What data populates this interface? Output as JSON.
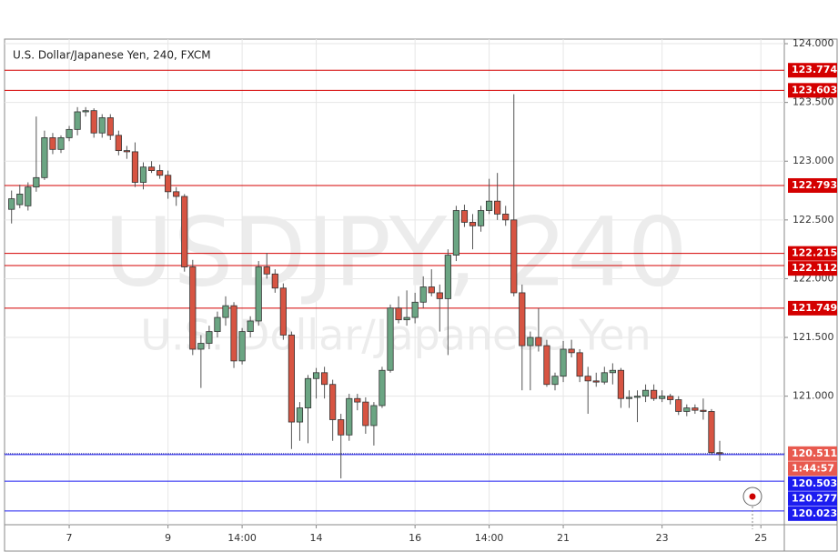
{
  "chart_data": {
    "type": "candlestick",
    "title": "U.S. Dollar/Japanese Yen, 240, FXCM",
    "watermark": [
      "USDJPY, 240",
      "U.S. Dollar/Japanese Yen"
    ],
    "categories": [
      null,
      null,
      null,
      null,
      null,
      null,
      null,
      "7",
      null,
      null,
      null,
      null,
      null,
      null,
      null,
      null,
      null,
      null,
      null,
      "9",
      null,
      null,
      null,
      null,
      null,
      null,
      null,
      null,
      "14:00",
      null,
      null,
      null,
      null,
      null,
      null,
      null,
      null,
      "14",
      null,
      null,
      null,
      null,
      null,
      null,
      null,
      null,
      null,
      null,
      null,
      "16",
      null,
      null,
      null,
      null,
      null,
      null,
      null,
      null,
      "14:00",
      null,
      null,
      null,
      null,
      null,
      null,
      null,
      null,
      "21",
      null,
      null,
      null,
      null,
      null,
      null,
      null,
      null,
      null,
      null,
      null,
      "23",
      null,
      null,
      null,
      null,
      null,
      null,
      null,
      null,
      null,
      null,
      null,
      "25"
    ],
    "open": [
      122.59,
      122.63,
      122.62,
      122.78,
      122.86,
      123.2,
      123.1,
      123.2,
      123.27,
      123.42,
      123.43,
      123.24,
      123.37,
      123.22,
      123.09,
      123.08,
      122.82,
      122.95,
      122.92,
      122.88,
      122.74,
      122.7,
      122.1,
      121.4,
      121.45,
      121.55,
      121.67,
      121.77,
      121.3,
      121.55,
      121.64,
      122.1,
      122.04,
      121.92,
      121.52,
      120.78,
      120.9,
      121.15,
      121.2,
      121.1,
      120.8,
      120.67,
      120.98,
      120.95,
      120.75,
      120.92,
      121.22,
      121.75,
      121.65,
      121.67,
      121.8,
      121.93,
      121.88,
      121.83,
      122.2,
      122.58,
      122.48,
      122.45,
      122.58,
      122.66,
      122.55,
      122.5,
      121.88,
      121.43,
      121.5,
      121.43,
      121.1,
      121.17,
      121.4,
      121.37,
      121.17,
      121.13,
      121.12,
      121.2,
      121.22,
      120.98,
      120.99,
      121.0,
      121.05,
      120.98,
      121.0,
      120.97,
      120.87,
      120.9,
      120.88,
      120.87,
      120.52,
      null,
      null,
      null,
      null,
      null
    ],
    "high": [
      122.75,
      122.8,
      122.82,
      123.38,
      123.26,
      123.24,
      123.22,
      123.3,
      123.46,
      123.46,
      123.45,
      123.4,
      123.4,
      123.26,
      123.13,
      123.16,
      122.99,
      123.0,
      122.97,
      122.92,
      122.78,
      122.72,
      122.16,
      121.52,
      121.6,
      121.72,
      121.85,
      121.8,
      121.58,
      121.68,
      122.15,
      122.22,
      122.08,
      121.96,
      121.55,
      120.95,
      121.18,
      121.24,
      121.25,
      121.14,
      120.85,
      121.02,
      121.02,
      120.99,
      120.95,
      121.25,
      121.78,
      121.85,
      121.9,
      121.88,
      122.02,
      122.08,
      121.95,
      122.25,
      122.62,
      122.63,
      122.55,
      122.62,
      122.85,
      122.9,
      122.62,
      123.57,
      121.95,
      121.55,
      121.75,
      121.48,
      121.2,
      121.47,
      121.48,
      121.4,
      121.25,
      121.2,
      121.25,
      121.28,
      121.24,
      121.05,
      121.05,
      121.1,
      121.1,
      121.05,
      121.02,
      121.0,
      120.93,
      120.93,
      120.98,
      120.89,
      120.62,
      null,
      null,
      null,
      null,
      null
    ],
    "low": [
      122.47,
      122.6,
      122.58,
      122.74,
      122.84,
      123.06,
      123.07,
      123.17,
      123.22,
      123.38,
      123.2,
      123.2,
      123.18,
      123.05,
      123.02,
      122.78,
      122.76,
      122.9,
      122.85,
      122.68,
      122.62,
      122.06,
      121.35,
      121.07,
      121.4,
      121.5,
      121.6,
      121.24,
      121.27,
      121.5,
      121.6,
      122.0,
      121.88,
      121.48,
      120.55,
      120.62,
      120.6,
      120.98,
      120.98,
      120.62,
      120.3,
      120.62,
      120.88,
      120.68,
      120.58,
      120.9,
      121.2,
      121.62,
      121.6,
      121.62,
      121.75,
      121.85,
      121.55,
      121.35,
      122.15,
      122.44,
      122.25,
      122.4,
      122.55,
      122.5,
      122.45,
      121.85,
      121.05,
      121.05,
      121.38,
      121.08,
      121.05,
      121.12,
      121.33,
      121.12,
      120.85,
      121.08,
      121.1,
      121.1,
      120.9,
      120.9,
      120.78,
      120.95,
      120.96,
      120.95,
      120.93,
      120.84,
      120.83,
      120.85,
      120.8,
      120.5,
      120.45,
      null,
      null,
      null,
      null,
      null
    ],
    "close": [
      122.68,
      122.72,
      122.78,
      122.86,
      123.2,
      123.1,
      123.2,
      123.27,
      123.42,
      123.43,
      123.24,
      123.37,
      123.22,
      123.09,
      123.08,
      122.82,
      122.95,
      122.92,
      122.88,
      122.74,
      122.7,
      122.1,
      121.4,
      121.45,
      121.55,
      121.67,
      121.77,
      121.3,
      121.55,
      121.64,
      122.1,
      122.04,
      121.92,
      121.52,
      120.78,
      120.9,
      121.15,
      121.2,
      121.1,
      120.8,
      120.67,
      120.98,
      120.95,
      120.75,
      120.92,
      121.22,
      121.75,
      121.65,
      121.67,
      121.8,
      121.93,
      121.88,
      121.83,
      122.2,
      122.58,
      122.48,
      122.45,
      122.58,
      122.66,
      122.55,
      122.5,
      121.88,
      121.43,
      121.5,
      121.43,
      121.1,
      121.17,
      121.4,
      121.37,
      121.17,
      121.13,
      121.12,
      121.2,
      121.22,
      120.98,
      120.99,
      121.0,
      121.05,
      120.98,
      121.0,
      120.97,
      120.87,
      120.9,
      120.88,
      120.87,
      120.52,
      120.511,
      null,
      null,
      null,
      null,
      null
    ],
    "up_color": "#6ba583",
    "down_color": "#d75442",
    "ylim": [
      119.906,
      124.039
    ],
    "yticks": [
      {
        "value": 124,
        "label": "124.000"
      },
      {
        "value": 123.5,
        "label": "123.500"
      },
      {
        "value": 123,
        "label": "123.000"
      },
      {
        "value": 122.5,
        "label": "122.500"
      },
      {
        "value": 122,
        "label": "122.000"
      },
      {
        "value": 121.5,
        "label": "121.500"
      },
      {
        "value": 121,
        "label": "121.000"
      }
    ],
    "grid": true,
    "levels": [
      {
        "value": 123.774,
        "color": "#d40000"
      },
      {
        "value": 123.603,
        "color": "#d40000"
      },
      {
        "value": 122.793,
        "color": "#d40000"
      },
      {
        "value": 122.215,
        "color": "#d40000"
      },
      {
        "value": 122.112,
        "color": "#d40000"
      },
      {
        "value": 121.749,
        "color": "#d40000"
      },
      {
        "value": 120.503,
        "color": "#1c1cf0"
      },
      {
        "value": 120.277,
        "color": "#1c1cf0"
      },
      {
        "value": 120.023,
        "color": "#1c1cf0"
      }
    ],
    "last_price": {
      "value": 120.511,
      "color": "#e85a4f",
      "line_color": "#2a2a9a",
      "countdown": "1:44:57"
    }
  }
}
